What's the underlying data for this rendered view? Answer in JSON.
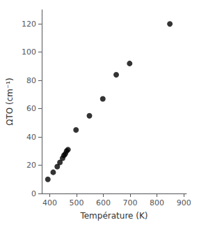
{
  "chart_data": {
    "type": "scatter",
    "x": [
      393,
      413,
      428,
      438,
      448,
      453,
      458,
      463,
      468,
      498,
      548,
      598,
      648,
      698,
      848
    ],
    "y": [
      10,
      15,
      19,
      22,
      25,
      27,
      28,
      30,
      31,
      45,
      55,
      67,
      84,
      92,
      120
    ],
    "xlabel": "Température (K)",
    "ylabel": "ΩTO (cm⁻¹)",
    "xlim": [
      370,
      910
    ],
    "ylim": [
      0,
      130
    ],
    "xticks": [
      400,
      500,
      600,
      700,
      800,
      900
    ],
    "yticks": [
      0,
      20,
      40,
      60,
      80,
      100,
      120
    ],
    "marker": "circle",
    "color": "#000000",
    "grid": false
  }
}
